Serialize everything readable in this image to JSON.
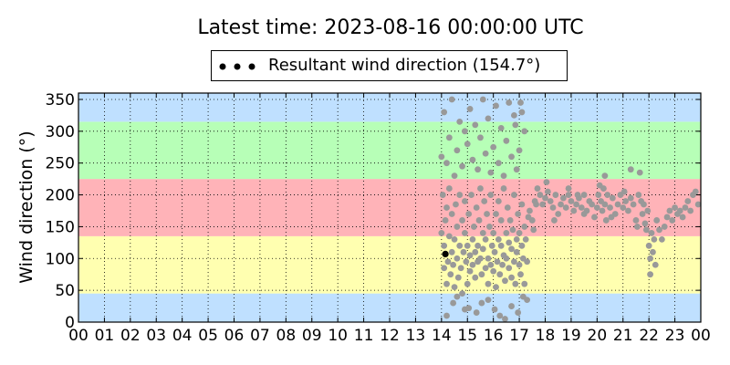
{
  "chart_data": {
    "type": "scatter",
    "title": "Latest time: 2023-08-16 00:00:00 UTC",
    "ylabel": "Wind direction (°)",
    "xlabel": "",
    "legend": {
      "placement": "top-center",
      "label": "Resultant wind direction (154.7°)"
    },
    "x_range": [
      0,
      24
    ],
    "ylim": [
      0,
      360
    ],
    "x_ticks": [
      "00",
      "01",
      "02",
      "03",
      "04",
      "05",
      "06",
      "07",
      "08",
      "09",
      "10",
      "11",
      "12",
      "13",
      "14",
      "15",
      "16",
      "17",
      "18",
      "19",
      "20",
      "21",
      "22",
      "23",
      "00"
    ],
    "y_ticks": [
      0,
      50,
      100,
      150,
      200,
      250,
      300,
      350
    ],
    "grid": true,
    "bands": [
      {
        "from": 0,
        "to": 45,
        "color": "#bfe0ff"
      },
      {
        "from": 45,
        "to": 135,
        "color": "#ffffb0"
      },
      {
        "from": 135,
        "to": 225,
        "color": "#ffb3b8"
      },
      {
        "from": 225,
        "to": 315,
        "color": "#b7ffb7"
      },
      {
        "from": 315,
        "to": 360,
        "color": "#bfe0ff"
      }
    ],
    "point_color": "#999999",
    "highlight_color": "#000000",
    "highlight_point": {
      "x": 14.15,
      "y": 107
    },
    "points": [
      [
        14.0,
        140
      ],
      [
        14.05,
        200
      ],
      [
        14.1,
        120
      ],
      [
        14.1,
        85
      ],
      [
        14.15,
        160
      ],
      [
        14.2,
        60
      ],
      [
        14.2,
        180
      ],
      [
        14.25,
        95
      ],
      [
        14.3,
        135
      ],
      [
        14.3,
        210
      ],
      [
        14.35,
        75
      ],
      [
        14.4,
        110
      ],
      [
        14.4,
        170
      ],
      [
        14.45,
        90
      ],
      [
        14.5,
        55
      ],
      [
        14.5,
        130
      ],
      [
        14.55,
        185
      ],
      [
        14.6,
        100
      ],
      [
        14.6,
        150
      ],
      [
        14.65,
        70
      ],
      [
        14.7,
        120
      ],
      [
        14.7,
        200
      ],
      [
        14.75,
        85
      ],
      [
        14.8,
        160
      ],
      [
        14.8,
        45
      ],
      [
        14.85,
        110
      ],
      [
        14.9,
        140
      ],
      [
        14.9,
        190
      ],
      [
        14.95,
        95
      ],
      [
        15.0,
        120
      ],
      [
        15.0,
        60
      ],
      [
        15.05,
        170
      ],
      [
        15.1,
        80
      ],
      [
        15.1,
        105
      ],
      [
        15.15,
        200
      ],
      [
        15.2,
        130
      ],
      [
        15.2,
        90
      ],
      [
        15.25,
        150
      ],
      [
        15.3,
        110
      ],
      [
        15.3,
        70
      ],
      [
        15.35,
        180
      ],
      [
        15.4,
        120
      ],
      [
        15.4,
        95
      ],
      [
        15.45,
        160
      ],
      [
        15.5,
        100
      ],
      [
        15.5,
        210
      ],
      [
        15.55,
        75
      ],
      [
        15.6,
        140
      ],
      [
        15.6,
        115
      ],
      [
        15.65,
        190
      ],
      [
        15.7,
        85
      ],
      [
        15.7,
        130
      ],
      [
        15.75,
        170
      ],
      [
        15.8,
        60
      ],
      [
        15.8,
        100
      ],
      [
        15.85,
        150
      ],
      [
        15.9,
        90
      ],
      [
        15.9,
        200
      ],
      [
        15.95,
        120
      ],
      [
        16.0,
        80
      ],
      [
        16.0,
        140
      ],
      [
        16.05,
        110
      ],
      [
        16.1,
        170
      ],
      [
        16.1,
        55
      ],
      [
        16.15,
        95
      ],
      [
        16.2,
        130
      ],
      [
        16.2,
        190
      ],
      [
        16.25,
        75
      ],
      [
        16.3,
        120
      ],
      [
        16.3,
        160
      ],
      [
        16.35,
        90
      ],
      [
        16.4,
        105
      ],
      [
        16.4,
        210
      ],
      [
        16.45,
        65
      ],
      [
        16.5,
        140
      ],
      [
        16.5,
        100
      ],
      [
        16.55,
        180
      ],
      [
        16.6,
        85
      ],
      [
        16.6,
        125
      ],
      [
        16.65,
        160
      ],
      [
        16.7,
        70
      ],
      [
        16.7,
        115
      ],
      [
        16.75,
        145
      ],
      [
        16.8,
        95
      ],
      [
        16.8,
        200
      ],
      [
        16.85,
        60
      ],
      [
        16.9,
        130
      ],
      [
        16.9,
        110
      ],
      [
        16.95,
        170
      ],
      [
        17.0,
        90
      ],
      [
        17.0,
        140
      ],
      [
        17.05,
        75
      ],
      [
        17.1,
        120
      ],
      [
        17.1,
        185
      ],
      [
        17.15,
        100
      ],
      [
        17.2,
        60
      ],
      [
        17.2,
        150
      ],
      [
        17.25,
        130
      ],
      [
        17.3,
        95
      ],
      [
        17.35,
        165
      ],
      [
        14.0,
        260
      ],
      [
        14.1,
        330
      ],
      [
        14.2,
        250
      ],
      [
        14.3,
        290
      ],
      [
        14.4,
        350
      ],
      [
        14.5,
        230
      ],
      [
        14.6,
        270
      ],
      [
        14.7,
        315
      ],
      [
        14.8,
        245
      ],
      [
        14.9,
        300
      ],
      [
        15.0,
        280
      ],
      [
        15.1,
        335
      ],
      [
        15.2,
        255
      ],
      [
        15.3,
        310
      ],
      [
        15.4,
        240
      ],
      [
        15.5,
        290
      ],
      [
        15.6,
        350
      ],
      [
        15.7,
        265
      ],
      [
        15.8,
        320
      ],
      [
        15.9,
        235
      ],
      [
        16.0,
        275
      ],
      [
        16.1,
        340
      ],
      [
        16.2,
        250
      ],
      [
        16.3,
        305
      ],
      [
        16.4,
        230
      ],
      [
        16.5,
        285
      ],
      [
        16.6,
        345
      ],
      [
        16.7,
        260
      ],
      [
        16.8,
        325
      ],
      [
        16.9,
        240
      ],
      [
        17.0,
        270
      ],
      [
        17.1,
        330
      ],
      [
        17.2,
        300
      ],
      [
        16.85,
        310
      ],
      [
        17.05,
        345
      ],
      [
        14.45,
        30
      ],
      [
        14.9,
        20
      ],
      [
        15.35,
        15
      ],
      [
        15.8,
        35
      ],
      [
        16.25,
        10
      ],
      [
        16.7,
        25
      ],
      [
        17.15,
        40
      ],
      [
        14.2,
        10
      ],
      [
        15.05,
        22
      ],
      [
        16.45,
        5
      ],
      [
        17.3,
        35
      ],
      [
        14.6,
        40
      ],
      [
        15.55,
        30
      ],
      [
        16.05,
        20
      ],
      [
        16.95,
        15
      ],
      [
        17.4,
        175
      ],
      [
        17.5,
        160
      ],
      [
        17.55,
        145
      ],
      [
        17.6,
        190
      ],
      [
        17.7,
        210
      ],
      [
        17.8,
        200
      ],
      [
        17.9,
        185
      ],
      [
        18.0,
        195
      ],
      [
        18.05,
        220
      ],
      [
        18.1,
        205
      ],
      [
        18.2,
        190
      ],
      [
        18.3,
        180
      ],
      [
        18.4,
        200
      ],
      [
        18.5,
        170
      ],
      [
        18.6,
        185
      ],
      [
        18.7,
        195
      ],
      [
        18.8,
        180
      ],
      [
        18.9,
        200
      ],
      [
        19.0,
        190
      ],
      [
        19.1,
        175
      ],
      [
        19.2,
        185
      ],
      [
        19.3,
        195
      ],
      [
        19.4,
        180
      ],
      [
        19.5,
        200
      ],
      [
        19.6,
        175
      ],
      [
        19.7,
        190
      ],
      [
        19.8,
        185
      ],
      [
        19.9,
        165
      ],
      [
        20.0,
        180
      ],
      [
        20.05,
        200
      ],
      [
        20.1,
        215
      ],
      [
        20.15,
        190
      ],
      [
        20.2,
        175
      ],
      [
        20.25,
        210
      ],
      [
        20.3,
        185
      ],
      [
        20.35,
        160
      ],
      [
        20.4,
        200
      ],
      [
        20.5,
        180
      ],
      [
        20.6,
        195
      ],
      [
        20.7,
        170
      ],
      [
        20.8,
        185
      ],
      [
        20.9,
        200
      ],
      [
        21.0,
        180
      ],
      [
        21.05,
        205
      ],
      [
        21.1,
        190
      ],
      [
        21.2,
        175
      ],
      [
        21.3,
        195
      ],
      [
        21.4,
        185
      ],
      [
        21.5,
        160
      ],
      [
        21.6,
        200
      ],
      [
        21.65,
        235
      ],
      [
        21.7,
        190
      ],
      [
        21.75,
        170
      ],
      [
        21.8,
        185
      ],
      [
        21.85,
        155
      ],
      [
        21.9,
        145
      ],
      [
        21.95,
        175
      ],
      [
        22.0,
        120
      ],
      [
        22.05,
        100
      ],
      [
        22.1,
        140
      ],
      [
        22.15,
        110
      ],
      [
        22.2,
        130
      ],
      [
        22.25,
        90
      ],
      [
        22.3,
        160
      ],
      [
        22.4,
        145
      ],
      [
        22.5,
        130
      ],
      [
        22.6,
        150
      ],
      [
        22.7,
        165
      ],
      [
        22.8,
        175
      ],
      [
        22.9,
        160
      ],
      [
        23.0,
        180
      ],
      [
        23.1,
        170
      ],
      [
        23.2,
        175
      ],
      [
        23.3,
        165
      ],
      [
        23.4,
        180
      ],
      [
        23.5,
        190
      ],
      [
        23.6,
        175
      ],
      [
        23.7,
        200
      ],
      [
        23.8,
        205
      ],
      [
        23.9,
        185
      ],
      [
        21.3,
        240
      ],
      [
        20.3,
        230
      ],
      [
        19.5,
        170
      ],
      [
        18.9,
        210
      ],
      [
        22.05,
        75
      ],
      [
        21.55,
        150
      ],
      [
        20.55,
        165
      ],
      [
        19.25,
        200
      ],
      [
        18.35,
        160
      ],
      [
        17.65,
        185
      ]
    ]
  }
}
